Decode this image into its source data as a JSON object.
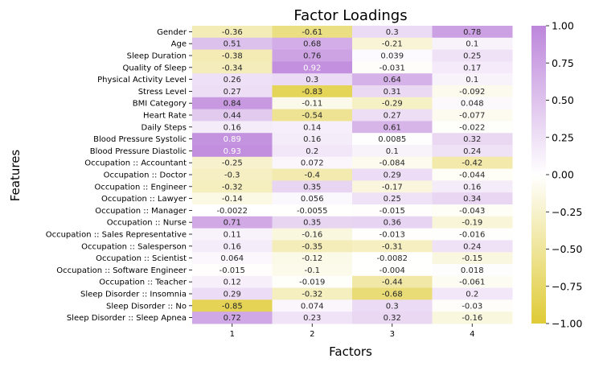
{
  "chart_data": {
    "type": "heatmap",
    "title": "Factor Loadings",
    "xlabel": "Factors",
    "ylabel": "Features",
    "columns": [
      "1",
      "2",
      "3",
      "4"
    ],
    "rows": [
      "Gender",
      "Age",
      "Sleep Duration",
      "Quality of Sleep",
      "Physical Activity Level",
      "Stress Level",
      "BMI Category",
      "Heart Rate",
      "Daily Steps",
      "Blood Pressure Systolic",
      "Blood Pressure Diastolic",
      "Occupation :: Accountant",
      "Occupation :: Doctor",
      "Occupation :: Engineer",
      "Occupation :: Lawyer",
      "Occupation :: Manager",
      "Occupation :: Nurse",
      "Occupation :: Sales Representative",
      "Occupation :: Salesperson",
      "Occupation :: Scientist",
      "Occupation :: Software Engineer",
      "Occupation :: Teacher",
      "Sleep Disorder :: Insomnia",
      "Sleep Disorder :: No",
      "Sleep Disorder :: Sleep Apnea"
    ],
    "labels": [
      [
        "-0.36",
        "-0.61",
        "0.3",
        "0.78"
      ],
      [
        "0.51",
        "0.68",
        "-0.21",
        "0.1"
      ],
      [
        "-0.38",
        "0.76",
        "0.039",
        "0.25"
      ],
      [
        "-0.34",
        "0.92",
        "-0.031",
        "0.17"
      ],
      [
        "0.26",
        "0.3",
        "0.64",
        "0.1"
      ],
      [
        "0.27",
        "-0.83",
        "0.31",
        "-0.092"
      ],
      [
        "0.84",
        "-0.11",
        "-0.29",
        "0.048"
      ],
      [
        "0.44",
        "-0.54",
        "0.27",
        "-0.077"
      ],
      [
        "0.16",
        "0.14",
        "0.61",
        "-0.022"
      ],
      [
        "0.89",
        "0.16",
        "0.0085",
        "0.32"
      ],
      [
        "0.93",
        "0.2",
        "0.1",
        "0.24"
      ],
      [
        "-0.25",
        "0.072",
        "-0.084",
        "-0.42"
      ],
      [
        "-0.3",
        "-0.4",
        "0.29",
        "-0.044"
      ],
      [
        "-0.32",
        "0.35",
        "-0.17",
        "0.16"
      ],
      [
        "-0.14",
        "0.056",
        "0.25",
        "0.34"
      ],
      [
        "-0.0022",
        "-0.0055",
        "-0.015",
        "-0.043"
      ],
      [
        "0.71",
        "0.35",
        "0.36",
        "-0.19"
      ],
      [
        "0.11",
        "-0.16",
        "-0.013",
        "-0.016"
      ],
      [
        "0.16",
        "-0.35",
        "-0.31",
        "0.24"
      ],
      [
        "0.064",
        "-0.12",
        "-0.0082",
        "-0.15"
      ],
      [
        "-0.015",
        "-0.1",
        "-0.004",
        "0.018"
      ],
      [
        "0.12",
        "-0.019",
        "-0.44",
        "-0.061"
      ],
      [
        "0.29",
        "-0.32",
        "-0.68",
        "0.2"
      ],
      [
        "-0.85",
        "0.074",
        "0.3",
        "-0.03"
      ],
      [
        "0.72",
        "0.23",
        "0.32",
        "-0.16"
      ]
    ],
    "colorbar": {
      "range": [
        -1.0,
        1.0
      ],
      "ticks": [
        "1.00",
        "0.75",
        "0.50",
        "0.25",
        "0.00",
        "−0.25",
        "−0.50",
        "−0.75",
        "−1.00"
      ],
      "tick_values": [
        1.0,
        0.75,
        0.5,
        0.25,
        0.0,
        -0.25,
        -0.5,
        -0.75,
        -1.0
      ],
      "colors": {
        "low": "#dfcb36",
        "mid": "#ffffff",
        "high": "#bd86db"
      }
    }
  }
}
